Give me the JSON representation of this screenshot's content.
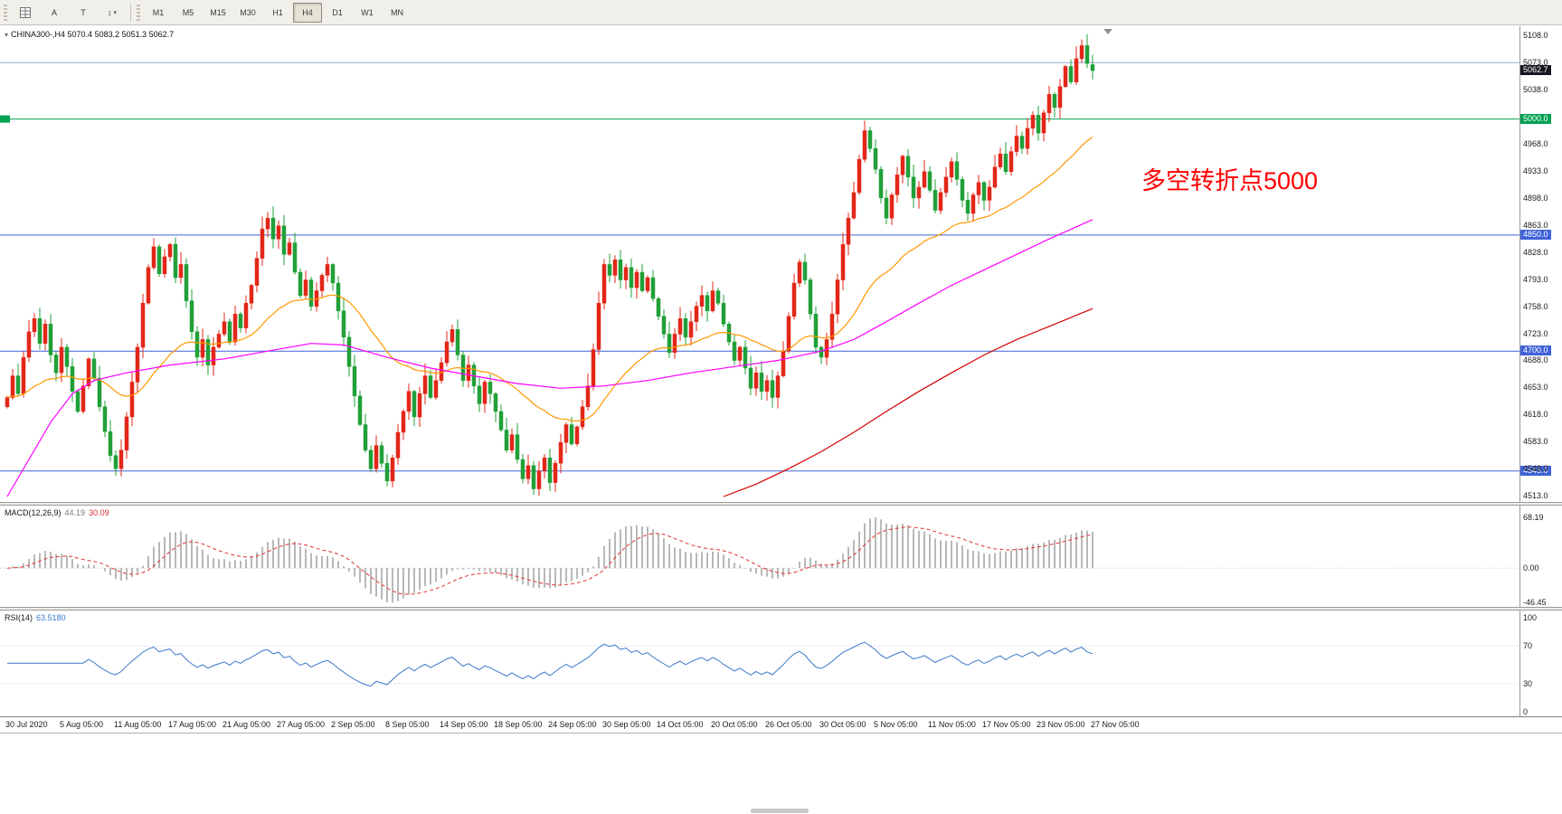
{
  "toolbar": {
    "tool_a": "A",
    "tool_t": "T",
    "timeframes": [
      "M1",
      "M5",
      "M15",
      "M30",
      "H1",
      "H4",
      "D1",
      "W1",
      "MN"
    ],
    "active": "H4"
  },
  "chart": {
    "symbol_header": "CHINA300-,H4 5070.4 5083.2 5051.3 5062.7",
    "annotation": {
      "text": "多空转折点5000",
      "color": "#fe0000"
    },
    "current_price_tag": {
      "value": "5062.7",
      "price": 5062.7,
      "bg": "#16161f"
    },
    "axis_labels": [
      "5108.0",
      "5073.0",
      "5038.0",
      "4968.0",
      "4933.0",
      "4898.0",
      "4863.0",
      "4828.0",
      "4793.0",
      "4758.0",
      "4723.0",
      "4688.0",
      "4653.0",
      "4618.0",
      "4583.0",
      "4548.0",
      "4513.0"
    ],
    "hlines": [
      {
        "price": 5073.0,
        "color": "#93abd0",
        "tag": null,
        "anchor_left": false
      },
      {
        "price": 5000.0,
        "color": "#00a151",
        "tag": "5000.0",
        "anchor_left": true
      },
      {
        "price": 4850.0,
        "color": "#3f62d8",
        "tag": "4850.0",
        "anchor_left": false
      },
      {
        "price": 4700.0,
        "color": "#3f62d8",
        "tag": "4700.0",
        "anchor_left": false
      },
      {
        "price": 4545.0,
        "color": "#3f62d8",
        "tag": "4545.0",
        "anchor_left": false
      }
    ]
  },
  "chart_data": {
    "type": "candlestick",
    "symbol": "CHINA300-",
    "timeframe": "H4",
    "last_ohlc": {
      "open": 5070.4,
      "high": 5083.2,
      "low": 5051.3,
      "close": 5062.7
    },
    "ylim": [
      4505,
      5120
    ],
    "first_open": 4628,
    "closes": [
      4640,
      4668,
      4645,
      4692,
      4725,
      4742,
      4710,
      4735,
      4695,
      4672,
      4705,
      4680,
      4648,
      4622,
      4655,
      4690,
      4665,
      4628,
      4596,
      4565,
      4548,
      4572,
      4615,
      4660,
      4705,
      4762,
      4808,
      4835,
      4800,
      4822,
      4838,
      4795,
      4812,
      4765,
      4725,
      4692,
      4715,
      4682,
      4705,
      4722,
      4738,
      4712,
      4748,
      4730,
      4762,
      4785,
      4820,
      4858,
      4872,
      4845,
      4862,
      4825,
      4840,
      4802,
      4772,
      4792,
      4758,
      4778,
      4798,
      4812,
      4788,
      4752,
      4718,
      4680,
      4642,
      4605,
      4572,
      4548,
      4578,
      4555,
      4532,
      4562,
      4595,
      4622,
      4648,
      4615,
      4645,
      4668,
      4640,
      4662,
      4685,
      4712,
      4728,
      4695,
      4662,
      4682,
      4655,
      4632,
      4660,
      4645,
      4622,
      4598,
      4572,
      4592,
      4560,
      4535,
      4552,
      4522,
      4545,
      4562,
      4530,
      4555,
      4582,
      4605,
      4580,
      4602,
      4628,
      4655,
      4702,
      4762,
      4812,
      4798,
      4818,
      4792,
      4808,
      4782,
      4802,
      4778,
      4795,
      4768,
      4745,
      4722,
      4698,
      4722,
      4742,
      4718,
      4738,
      4758,
      4772,
      4752,
      4778,
      4762,
      4735,
      4712,
      4688,
      4705,
      4678,
      4652,
      4672,
      4648,
      4662,
      4640,
      4668,
      4700,
      4745,
      4788,
      4815,
      4792,
      4748,
      4705,
      4692,
      4715,
      4748,
      4792,
      4838,
      4872,
      4905,
      4948,
      4985,
      4962,
      4935,
      4898,
      4872,
      4902,
      4928,
      4952,
      4925,
      4898,
      4912,
      4932,
      4908,
      4882,
      4905,
      4925,
      4945,
      4922,
      4895,
      4878,
      4902,
      4918,
      4895,
      4912,
      4938,
      4955,
      4932,
      4958,
      4978,
      4962,
      4988,
      5005,
      4982,
      5008,
      5032,
      5015,
      5042,
      5068,
      5048,
      5078,
      5095,
      5072,
      5062.7
    ],
    "ma_mid": [
      [
        0,
        4512
      ],
      [
        4,
        4560
      ],
      [
        8,
        4608
      ],
      [
        12,
        4645
      ],
      [
        16,
        4662
      ],
      [
        22,
        4672
      ],
      [
        30,
        4682
      ],
      [
        40,
        4690
      ],
      [
        48,
        4700
      ],
      [
        56,
        4710
      ],
      [
        62,
        4708
      ],
      [
        70,
        4692
      ],
      [
        78,
        4678
      ],
      [
        86,
        4668
      ],
      [
        94,
        4658
      ],
      [
        102,
        4652
      ],
      [
        110,
        4655
      ],
      [
        118,
        4662
      ],
      [
        126,
        4672
      ],
      [
        134,
        4680
      ],
      [
        142,
        4688
      ],
      [
        150,
        4700
      ],
      [
        156,
        4715
      ],
      [
        162,
        4738
      ],
      [
        168,
        4762
      ],
      [
        174,
        4785
      ],
      [
        180,
        4805
      ],
      [
        186,
        4825
      ],
      [
        192,
        4845
      ],
      [
        200,
        4870
      ]
    ],
    "ma_slow": [
      [
        132,
        4512
      ],
      [
        138,
        4528
      ],
      [
        144,
        4548
      ],
      [
        150,
        4570
      ],
      [
        156,
        4595
      ],
      [
        162,
        4622
      ],
      [
        168,
        4648
      ],
      [
        174,
        4672
      ],
      [
        180,
        4695
      ],
      [
        186,
        4715
      ],
      [
        192,
        4732
      ],
      [
        200,
        4755
      ]
    ],
    "colors": {
      "bull": "#e22718",
      "bear": "#21a038",
      "ma_fast": "#ff9800",
      "ma_mid": "#ff00ff",
      "ma_slow": "#d40000",
      "macd_hist": "#a0a0a0",
      "macd_signal": "#e03131",
      "rsi_line": "#3c78c8"
    },
    "x_dates": [
      "30 Jul 2020",
      "5 Aug 05:00",
      "11 Aug 05:00",
      "17 Aug 05:00",
      "21 Aug 05:00",
      "27 Aug 05:00",
      "2 Sep 05:00",
      "8 Sep 05:00",
      "14 Sep 05:00",
      "18 Sep 05:00",
      "24 Sep 05:00",
      "30 Sep 05:00",
      "14 Oct 05:00",
      "20 Oct 05:00",
      "26 Oct 05:00",
      "30 Oct 05:00",
      "5 Nov 05:00",
      "11 Nov 05:00",
      "17 Nov 05:00",
      "23 Nov 05:00",
      "27 Nov 05:00"
    ],
    "indicators": {
      "macd": {
        "label": "MACD(12,26,9)",
        "value_main": "44.19",
        "value_signal": "30.09",
        "axis": [
          "68.19",
          "0.00",
          "-46.45"
        ],
        "display_range": [
          -52,
          84
        ]
      },
      "rsi": {
        "label": "RSI(14)",
        "value": "63.5180",
        "axis": [
          "100",
          "70",
          "30",
          "0"
        ],
        "levels": [
          70,
          30
        ],
        "display_range": [
          -5,
          108
        ]
      }
    }
  }
}
